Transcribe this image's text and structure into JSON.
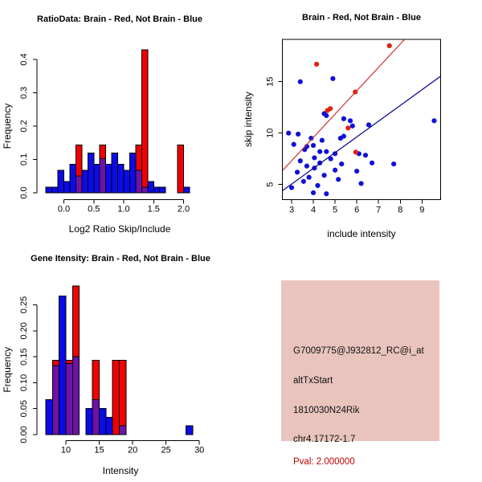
{
  "colors": {
    "bar_blue": "#0B0BE8",
    "bar_red": "#F20000",
    "overlap_purple": "#6E12A8",
    "point_blue": "#1010D8",
    "point_red": "#E02010",
    "line_blue": "#00008B",
    "line_red": "#CD3333",
    "info_bg": "#E9C4BC",
    "pval_red": "#C00000",
    "text": "#000000"
  },
  "chart_data": [
    {
      "type": "bar",
      "id": "ratio_histogram",
      "title": "RatioData: Brain - Red, Not Brain - Blue",
      "xlabel": "Log2 Ratio Skip/Include",
      "ylabel": "Frequency",
      "legend_note": "Brain = red bars, Not Brain = blue bars, overlap = purple",
      "x_ticks": [
        0.0,
        0.5,
        1.0,
        1.5,
        2.0
      ],
      "x_tick_labels": [
        "0.0",
        "0.5",
        "1.0",
        "1.5",
        "2.0"
      ],
      "y_ticks": [
        0.0,
        0.1,
        0.2,
        0.3,
        0.4
      ],
      "y_tick_labels": [
        "0.0",
        "0.1",
        "0.2",
        "0.3",
        "0.4"
      ],
      "ylim": [
        0,
        0.43
      ],
      "bin_width": 0.1,
      "bins": [
        {
          "x": -0.3,
          "blue": 0.017,
          "red": 0
        },
        {
          "x": -0.2,
          "blue": 0.017,
          "red": 0
        },
        {
          "x": -0.1,
          "blue": 0.068,
          "red": 0
        },
        {
          "x": 0.0,
          "blue": 0.034,
          "red": 0
        },
        {
          "x": 0.1,
          "blue": 0.085,
          "red": 0
        },
        {
          "x": 0.2,
          "blue": 0.051,
          "red": 0.143
        },
        {
          "x": 0.3,
          "blue": 0.068,
          "red": 0
        },
        {
          "x": 0.4,
          "blue": 0.119,
          "red": 0
        },
        {
          "x": 0.5,
          "blue": 0.085,
          "red": 0
        },
        {
          "x": 0.6,
          "blue": 0.102,
          "red": 0.143
        },
        {
          "x": 0.7,
          "blue": 0.085,
          "red": 0
        },
        {
          "x": 0.8,
          "blue": 0.119,
          "red": 0
        },
        {
          "x": 0.9,
          "blue": 0.085,
          "red": 0
        },
        {
          "x": 1.0,
          "blue": 0.068,
          "red": 0
        },
        {
          "x": 1.1,
          "blue": 0.119,
          "red": 0
        },
        {
          "x": 1.2,
          "blue": 0.068,
          "red": 0.143
        },
        {
          "x": 1.3,
          "blue": 0.017,
          "red": 0.429
        },
        {
          "x": 1.4,
          "blue": 0.034,
          "red": 0
        },
        {
          "x": 1.5,
          "blue": 0.017,
          "red": 0
        },
        {
          "x": 1.6,
          "blue": 0.017,
          "red": 0
        },
        {
          "x": 1.9,
          "blue": 0,
          "red": 0.143
        },
        {
          "x": 2.0,
          "blue": 0.017,
          "red": 0
        }
      ]
    },
    {
      "type": "scatter",
      "id": "intensity_scatter",
      "title": "Brain - Red, Not Brain - Blue",
      "xlabel": "include intensity",
      "ylabel": "skip intensity",
      "x_ticks": [
        3,
        4,
        5,
        6,
        7,
        8,
        9
      ],
      "y_ticks": [
        5,
        10,
        15
      ],
      "xlim": [
        2.58,
        9.85
      ],
      "ylim": [
        3.55,
        19.1
      ],
      "red_points": [
        [
          4.15,
          16.7
        ],
        [
          7.5,
          18.5
        ],
        [
          5.93,
          14.0
        ],
        [
          4.65,
          12.2
        ],
        [
          4.78,
          12.38
        ],
        [
          5.6,
          10.5
        ],
        [
          5.95,
          8.15
        ]
      ],
      "blue_points": [
        [
          3.4,
          15.0
        ],
        [
          4.9,
          15.3
        ],
        [
          4.5,
          11.9
        ],
        [
          4.6,
          11.7
        ],
        [
          5.4,
          11.4
        ],
        [
          5.7,
          11.2
        ],
        [
          5.8,
          10.7
        ],
        [
          6.55,
          10.8
        ],
        [
          9.56,
          11.2
        ],
        [
          2.86,
          10.0
        ],
        [
          3.3,
          9.9
        ],
        [
          5.4,
          9.7
        ],
        [
          3.9,
          9.5
        ],
        [
          5.25,
          9.5
        ],
        [
          4.4,
          9.3
        ],
        [
          3.1,
          8.9
        ],
        [
          4.0,
          8.8
        ],
        [
          3.7,
          8.7
        ],
        [
          3.6,
          8.4
        ],
        [
          4.3,
          8.2
        ],
        [
          4.6,
          8.2
        ],
        [
          5.0,
          8.0
        ],
        [
          6.1,
          8.0
        ],
        [
          6.4,
          7.85
        ],
        [
          4.05,
          7.6
        ],
        [
          4.8,
          7.5
        ],
        [
          3.4,
          7.3
        ],
        [
          4.3,
          7.1
        ],
        [
          6.7,
          7.1
        ],
        [
          7.7,
          7.0
        ],
        [
          5.3,
          7.0
        ],
        [
          3.7,
          6.8
        ],
        [
          4.05,
          6.6
        ],
        [
          5.0,
          6.4
        ],
        [
          3.26,
          6.2
        ],
        [
          6.0,
          6.3
        ],
        [
          4.5,
          5.9
        ],
        [
          3.8,
          5.7
        ],
        [
          5.15,
          5.5
        ],
        [
          3.55,
          5.3
        ],
        [
          6.2,
          5.1
        ],
        [
          4.2,
          4.9
        ],
        [
          3.0,
          4.7
        ],
        [
          4.0,
          4.2
        ],
        [
          4.6,
          4.1
        ]
      ],
      "lines": [
        {
          "series": "red",
          "slope": 2.27,
          "intercept": 0.5
        },
        {
          "series": "blue",
          "slope": 1.53,
          "intercept": 0.45
        }
      ]
    },
    {
      "type": "bar",
      "id": "gene_intensity_histogram",
      "title": "Gene Itensity: Brain - Red, Not Brain - Blue",
      "xlabel": "Intensity",
      "ylabel": "Frequency",
      "x_ticks": [
        10,
        15,
        20,
        25,
        30
      ],
      "x_tick_labels": [
        "10",
        "15",
        "20",
        "25",
        "30"
      ],
      "y_ticks": [
        0.0,
        0.05,
        0.1,
        0.15,
        0.2,
        0.25
      ],
      "y_tick_labels": [
        "0.00",
        "0.05",
        "0.10",
        "0.15",
        "0.20",
        "0.25"
      ],
      "ylim": [
        0,
        0.29
      ],
      "bin_width": 1,
      "bins": [
        {
          "x": 7,
          "blue": 0.067,
          "red": 0
        },
        {
          "x": 8,
          "blue": 0.133,
          "red": 0.143
        },
        {
          "x": 9,
          "blue": 0.267,
          "red": 0
        },
        {
          "x": 10,
          "blue": 0.137,
          "red": 0.143
        },
        {
          "x": 11,
          "blue": 0.15,
          "red": 0.286
        },
        {
          "x": 13,
          "blue": 0.05,
          "red": 0
        },
        {
          "x": 14,
          "blue": 0.067,
          "red": 0.143
        },
        {
          "x": 15,
          "blue": 0.05,
          "red": 0
        },
        {
          "x": 16,
          "blue": 0.033,
          "red": 0
        },
        {
          "x": 17,
          "blue": 0,
          "red": 0.143
        },
        {
          "x": 18,
          "blue": 0.017,
          "red": 0.143
        },
        {
          "x": 28,
          "blue": 0.017,
          "red": 0
        }
      ]
    }
  ],
  "info_box": {
    "lines": [
      {
        "text": "G7009775@J932812_RC@i_at",
        "color": "black"
      },
      {
        "text": "altTxStart",
        "color": "black"
      },
      {
        "text": "1810030N24Rik",
        "color": "black"
      },
      {
        "text": "chr4.17172-1.7",
        "color": "black"
      },
      {
        "text": "Pval: 2.000000",
        "color": "red"
      }
    ]
  }
}
